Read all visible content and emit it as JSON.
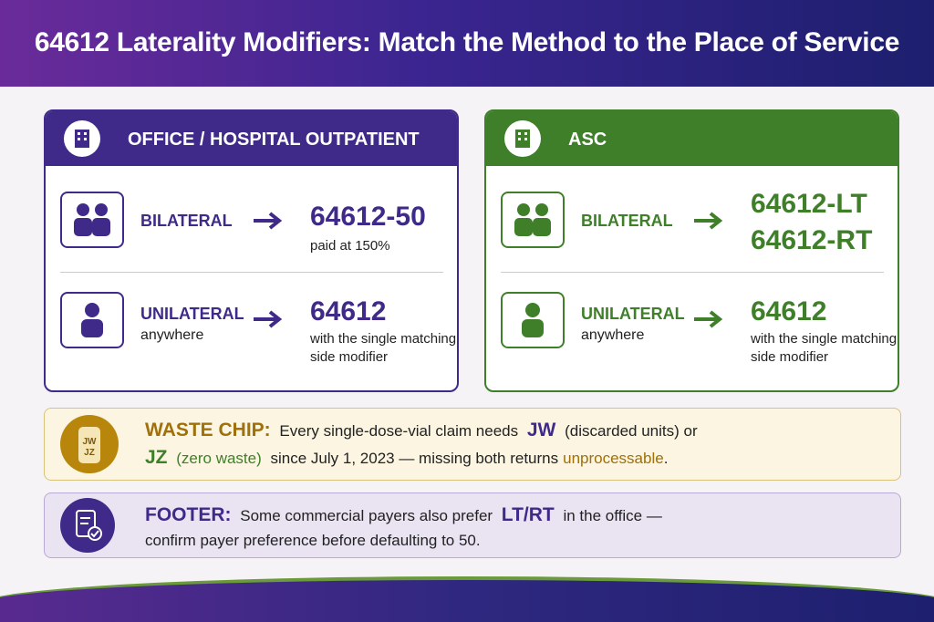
{
  "title": "64612 Laterality Modifiers: Match the Method to the Place of Service",
  "panels": [
    {
      "heading": "OFFICE / HOSPITAL OUTPATIENT",
      "bilateral": {
        "label": "BILATERAL",
        "codes": [
          "64612-50"
        ],
        "note": "paid at 150%"
      },
      "unilateral": {
        "label": "UNILATERAL",
        "sub": "anywhere",
        "codes": [
          "64612"
        ],
        "note": "with the single matching side modifier"
      }
    },
    {
      "heading": "ASC",
      "bilateral": {
        "label": "BILATERAL",
        "codes": [
          "64612-LT",
          "64612-RT"
        ]
      },
      "unilateral": {
        "label": "UNILATERAL",
        "sub": "anywhere",
        "codes": [
          "64612"
        ],
        "note": "with the single matching side modifier"
      }
    }
  ],
  "waste_chip": {
    "icon_text": [
      "JW",
      "JZ"
    ],
    "label": "WASTE CHIP:",
    "line1": {
      "text": "Every single-dose-vial claim needs",
      "code": "JW",
      "code_note": "(discarded units) or"
    },
    "line2": {
      "code": "JZ",
      "code_note": "(zero waste)",
      "text": "since July 1, 2023 — missing both returns",
      "highlight": "unprocessable",
      "end": "."
    }
  },
  "footer": {
    "label": "FOOTER:",
    "line1": {
      "text": "Some commercial payers also prefer",
      "code": "LT/RT",
      "end": "in the office —"
    },
    "line2": "confirm payer preference before defaulting to 50."
  }
}
